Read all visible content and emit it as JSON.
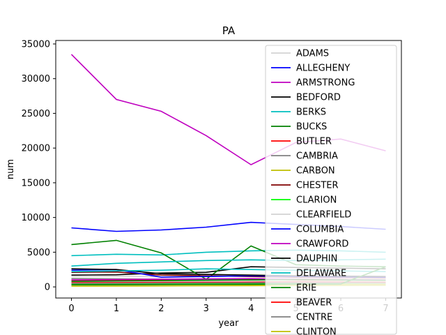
{
  "chart_data": {
    "type": "line",
    "title": "PA",
    "xlabel": "year",
    "ylabel": "num",
    "x": [
      0,
      1,
      2,
      3,
      4,
      5,
      6,
      7
    ],
    "xlim": [
      -0.35,
      7.35
    ],
    "ylim": [
      -1600,
      35500
    ],
    "xticks": [
      0,
      1,
      2,
      3,
      4,
      5,
      6,
      7
    ],
    "yticks": [
      0,
      5000,
      10000,
      15000,
      20000,
      25000,
      30000,
      35000
    ],
    "grid": false,
    "legend_position": "upper-right",
    "series": [
      {
        "name": "ADAMS",
        "color": "#d3d3d3",
        "values": [
          1500,
          1550,
          1450,
          1500,
          1600,
          1550,
          1500,
          1450
        ]
      },
      {
        "name": "ALLEGHENY",
        "color": "#0000ff",
        "values": [
          8500,
          8000,
          8200,
          8600,
          9300,
          9000,
          8700,
          8300
        ]
      },
      {
        "name": "ARMSTRONG",
        "color": "#bf00bf",
        "values": [
          33500,
          27000,
          25300,
          21800,
          17600,
          20800,
          21300,
          19600
        ]
      },
      {
        "name": "BEDFORD",
        "color": "#000000",
        "values": [
          1700,
          1750,
          2000,
          2100,
          2900,
          2800,
          2700,
          2600
        ]
      },
      {
        "name": "BERKS",
        "color": "#00bfbf",
        "values": [
          4500,
          4700,
          4600,
          5000,
          5200,
          5300,
          5200,
          5000
        ]
      },
      {
        "name": "BUCKS",
        "color": "#008000",
        "values": [
          6100,
          6700,
          4900,
          1100,
          5900,
          3200,
          3000,
          2900
        ]
      },
      {
        "name": "BUTLER",
        "color": "#ff0000",
        "values": [
          900,
          950,
          1000,
          1050,
          1100,
          1000,
          950,
          900
        ]
      },
      {
        "name": "CAMBRIA",
        "color": "#808080",
        "values": [
          1200,
          1150,
          1100,
          1050,
          1000,
          1100,
          1050,
          1000
        ]
      },
      {
        "name": "CARBON",
        "color": "#bfbf00",
        "values": [
          300,
          320,
          330,
          340,
          350,
          360,
          370,
          380
        ]
      },
      {
        "name": "CHESTER",
        "color": "#800000",
        "values": [
          2100,
          2150,
          1700,
          1600,
          1500,
          1400,
          1350,
          1300
        ]
      },
      {
        "name": "CLARION",
        "color": "#00ff00",
        "values": [
          400,
          420,
          450,
          470,
          500,
          520,
          540,
          560
        ]
      },
      {
        "name": "CLEARFIELD",
        "color": "#d3d3d3",
        "values": [
          700,
          720,
          740,
          760,
          780,
          800,
          820,
          840
        ]
      },
      {
        "name": "COLUMBIA",
        "color": "#0000ff",
        "values": [
          2400,
          2500,
          1400,
          1500,
          1600,
          1500,
          1450,
          1400
        ]
      },
      {
        "name": "CRAWFORD",
        "color": "#bf00bf",
        "values": [
          1000,
          1050,
          1100,
          1150,
          1200,
          1100,
          1050,
          1000
        ]
      },
      {
        "name": "DAUPHIN",
        "color": "#000000",
        "values": [
          2600,
          2500,
          1900,
          1800,
          1700,
          1600,
          1550,
          1500
        ]
      },
      {
        "name": "DELAWARE",
        "color": "#00bfbf",
        "values": [
          3000,
          3400,
          3600,
          3800,
          3900,
          3800,
          3900,
          4000
        ]
      },
      {
        "name": "ERIE",
        "color": "#008000",
        "values": [
          800,
          850,
          900,
          950,
          1000,
          1050,
          1000,
          950
        ]
      },
      {
        "name": "BEAVER",
        "color": "#ff0000",
        "values": [
          600,
          620,
          640,
          660,
          680,
          700,
          680,
          660
        ]
      },
      {
        "name": "CENTRE",
        "color": "#808080",
        "values": [
          500,
          520,
          540,
          560,
          580,
          600,
          580,
          560
        ]
      },
      {
        "name": "CLINTON",
        "color": "#bfbf00",
        "values": [
          100,
          120,
          140,
          160,
          180,
          200,
          220,
          240
        ]
      },
      {
        "name": "",
        "color": "#00bfbf",
        "values": [
          2200,
          2300,
          2400,
          2600,
          2500,
          2400,
          2300,
          2200
        ]
      },
      {
        "name": "",
        "color": "#008000",
        "values": [
          300,
          320,
          340,
          360,
          380,
          400,
          420,
          2900
        ]
      }
    ]
  }
}
